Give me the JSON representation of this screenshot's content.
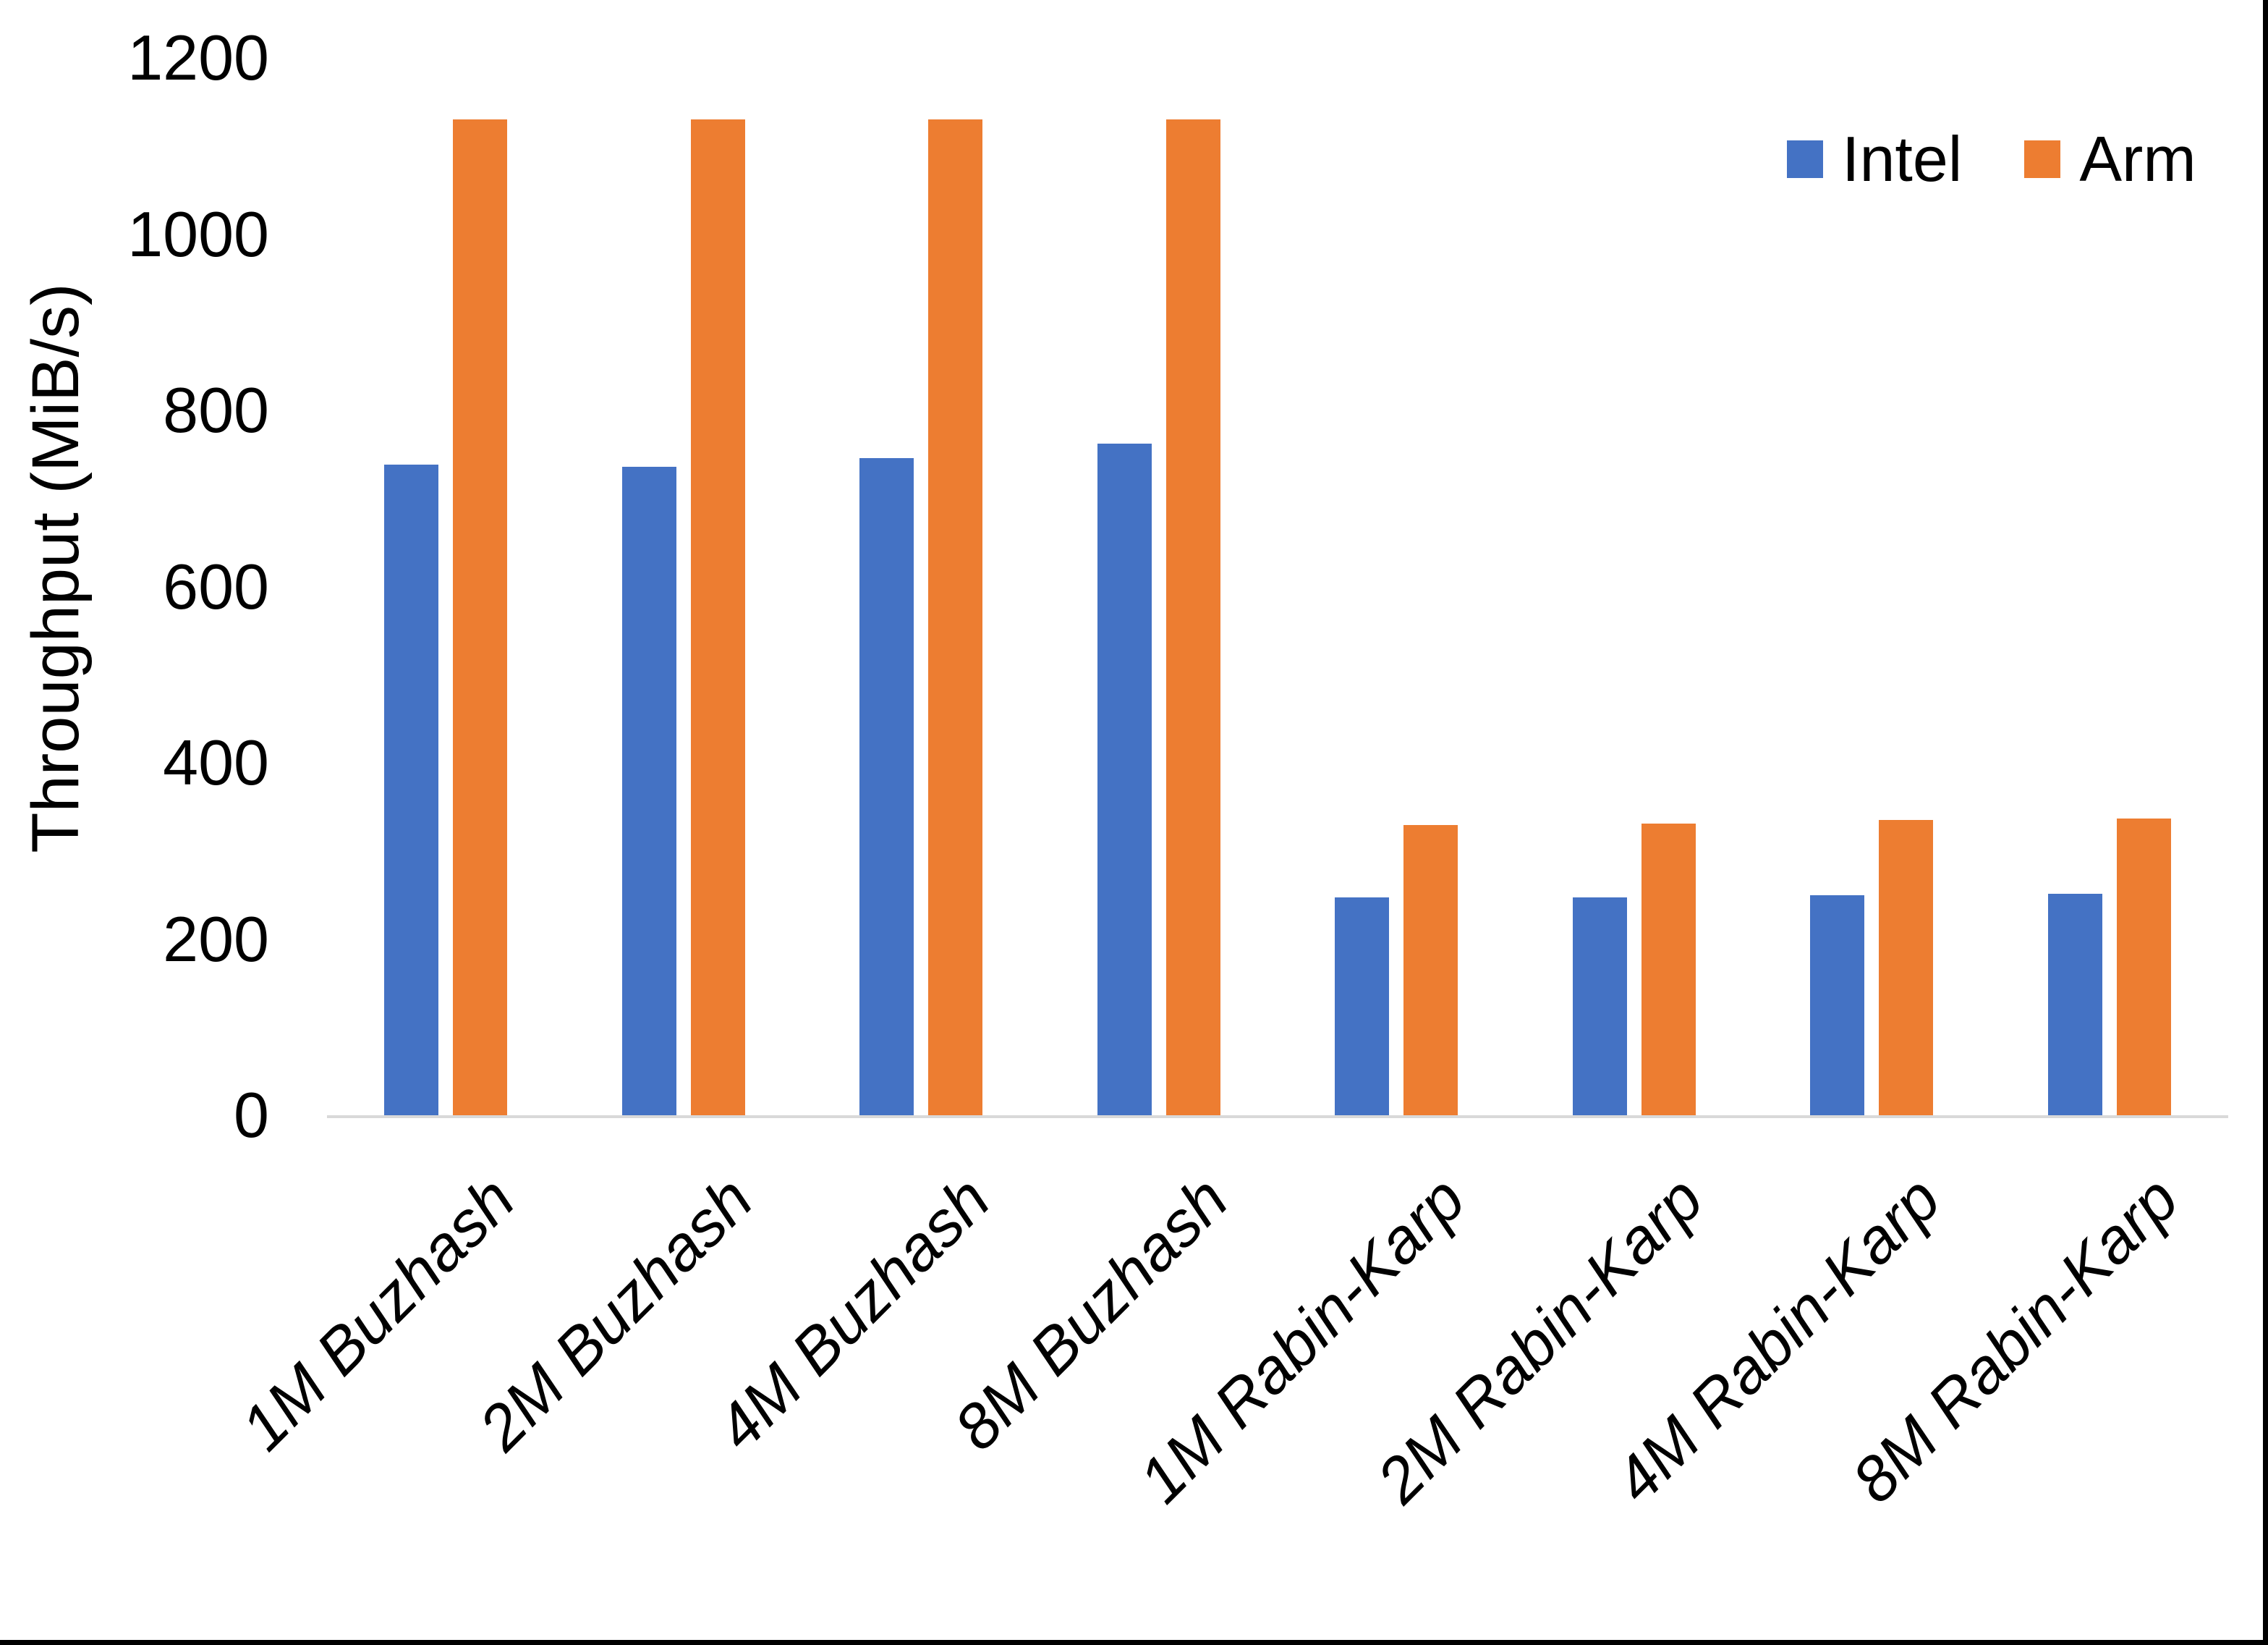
{
  "window": {
    "background_color": "#FFFFFF",
    "border_color": "#000000"
  },
  "chart_data": {
    "type": "bar",
    "title": "",
    "categories": [
      "1M Buzhash",
      "2M Buzhash",
      "4M Buzhash",
      "8M Buzhash",
      "1M Rabin-Karp",
      "2M Rabin-Karp",
      "4M Rabin-Karp",
      "8M Rabin-Karp"
    ],
    "series": [
      {
        "name": "Intel",
        "color": "#4472C4",
        "values": [
          738,
          736,
          746,
          762,
          247,
          247,
          250,
          251
        ]
      },
      {
        "name": "Arm",
        "color": "#ED7D31",
        "values": [
          1130,
          1130,
          1130,
          1130,
          329,
          331,
          335,
          337
        ]
      }
    ],
    "xlabel": "",
    "ylabel": "Throughput (MiB/s)",
    "ylim": [
      0,
      1200
    ],
    "yticks": [
      0,
      200,
      400,
      600,
      800,
      1000,
      1200
    ],
    "grid": false,
    "legend_position": "top-right",
    "axis_line_color": "#D9D9D9",
    "text_color": "#000000"
  }
}
